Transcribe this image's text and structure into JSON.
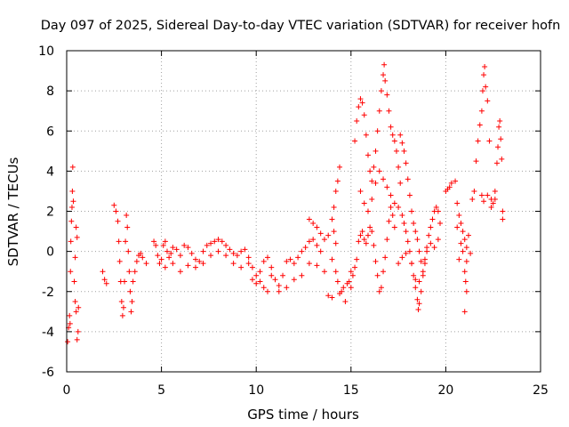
{
  "chart_data": {
    "type": "scatter",
    "title": "Day 097 of 2025, Sidereal Day-to-day VTEC variation (SDTVAR) for receiver hofn",
    "xlabel": "GPS time / hours",
    "ylabel": "SDTVAR / TECUs",
    "xlim": [
      0,
      25
    ],
    "ylim": [
      -6,
      10
    ],
    "xticks": [
      0,
      5,
      10,
      15,
      20,
      25
    ],
    "yticks": [
      -6,
      -4,
      -2,
      0,
      2,
      4,
      6,
      8,
      10
    ],
    "xtick_labels": [
      "0",
      "5",
      "10",
      "15",
      "20",
      "25"
    ],
    "ytick_labels": [
      "-6",
      "-4",
      "-2",
      "0",
      "2",
      "4",
      "6",
      "8",
      "10"
    ],
    "grid": true,
    "marker": "+",
    "marker_color": "#ff0000",
    "series": [
      {
        "name": "SDTVAR",
        "points": [
          [
            0.05,
            -4.5
          ],
          [
            0.1,
            -3.8
          ],
          [
            0.15,
            -3.2
          ],
          [
            0.18,
            -3.6
          ],
          [
            0.2,
            -1.0
          ],
          [
            0.22,
            0.5
          ],
          [
            0.25,
            1.5
          ],
          [
            0.28,
            2.2
          ],
          [
            0.3,
            3.0
          ],
          [
            0.32,
            4.2
          ],
          [
            0.35,
            2.5
          ],
          [
            0.4,
            -1.5
          ],
          [
            0.45,
            -2.5
          ],
          [
            0.5,
            -3.0
          ],
          [
            0.55,
            -4.4
          ],
          [
            0.6,
            -4.0
          ],
          [
            0.62,
            -2.8
          ],
          [
            0.5,
            1.2
          ],
          [
            0.55,
            0.7
          ],
          [
            0.45,
            -0.3
          ],
          [
            1.9,
            -1.0
          ],
          [
            2.0,
            -1.4
          ],
          [
            2.1,
            -1.6
          ],
          [
            2.5,
            2.3
          ],
          [
            2.6,
            2.0
          ],
          [
            2.7,
            1.5
          ],
          [
            2.75,
            0.5
          ],
          [
            2.8,
            -0.5
          ],
          [
            2.85,
            -1.5
          ],
          [
            2.9,
            -2.5
          ],
          [
            2.95,
            -3.2
          ],
          [
            3.0,
            -2.8
          ],
          [
            3.05,
            -1.5
          ],
          [
            3.1,
            0.5
          ],
          [
            3.15,
            1.8
          ],
          [
            3.2,
            1.2
          ],
          [
            3.25,
            0.0
          ],
          [
            3.3,
            -1.0
          ],
          [
            3.35,
            -2.0
          ],
          [
            3.4,
            -3.0
          ],
          [
            3.45,
            -2.5
          ],
          [
            3.5,
            -1.5
          ],
          [
            3.6,
            -1.0
          ],
          [
            3.7,
            -0.5
          ],
          [
            3.8,
            -0.2
          ],
          [
            3.9,
            -0.1
          ],
          [
            4.0,
            -0.3
          ],
          [
            4.2,
            -0.6
          ],
          [
            4.6,
            0.5
          ],
          [
            4.7,
            0.3
          ],
          [
            4.8,
            -0.2
          ],
          [
            4.9,
            -0.6
          ],
          [
            5.0,
            -0.4
          ],
          [
            5.1,
            0.3
          ],
          [
            5.2,
            0.5
          ],
          [
            5.3,
            0.0
          ],
          [
            5.4,
            -0.3
          ],
          [
            5.5,
            -0.1
          ],
          [
            5.6,
            0.2
          ],
          [
            5.8,
            0.1
          ],
          [
            6.0,
            -0.2
          ],
          [
            6.2,
            0.3
          ],
          [
            6.4,
            0.2
          ],
          [
            6.6,
            -0.1
          ],
          [
            6.8,
            -0.4
          ],
          [
            7.0,
            -0.5
          ],
          [
            7.2,
            0.0
          ],
          [
            7.4,
            0.3
          ],
          [
            7.6,
            0.4
          ],
          [
            7.8,
            0.5
          ],
          [
            8.0,
            0.6
          ],
          [
            8.2,
            0.5
          ],
          [
            8.4,
            0.3
          ],
          [
            8.6,
            0.1
          ],
          [
            8.8,
            -0.1
          ],
          [
            9.0,
            -0.2
          ],
          [
            9.2,
            0.0
          ],
          [
            9.4,
            0.1
          ],
          [
            9.6,
            -0.3
          ],
          [
            9.8,
            -0.8
          ],
          [
            10.0,
            -1.2
          ],
          [
            10.2,
            -1.0
          ],
          [
            10.4,
            -0.5
          ],
          [
            10.6,
            -0.3
          ],
          [
            10.8,
            -0.8
          ],
          [
            11.0,
            -1.4
          ],
          [
            11.2,
            -1.7
          ],
          [
            11.4,
            -1.2
          ],
          [
            11.6,
            -0.5
          ],
          [
            11.8,
            -0.4
          ],
          [
            12.0,
            -0.6
          ],
          [
            12.2,
            -0.3
          ],
          [
            12.4,
            0.0
          ],
          [
            12.6,
            0.2
          ],
          [
            12.8,
            0.5
          ],
          [
            13.0,
            0.6
          ],
          [
            13.2,
            0.3
          ],
          [
            13.4,
            0.0
          ],
          [
            5.2,
            -0.8
          ],
          [
            5.6,
            -0.6
          ],
          [
            6.0,
            -1.0
          ],
          [
            6.4,
            -0.7
          ],
          [
            6.8,
            -0.8
          ],
          [
            7.2,
            -0.6
          ],
          [
            7.6,
            -0.2
          ],
          [
            8.0,
            0.0
          ],
          [
            8.4,
            -0.2
          ],
          [
            8.8,
            -0.6
          ],
          [
            9.2,
            -0.8
          ],
          [
            9.6,
            -0.6
          ],
          [
            10.0,
            -1.6
          ],
          [
            10.4,
            -1.8
          ],
          [
            10.8,
            -1.2
          ],
          [
            11.2,
            -2.0
          ],
          [
            11.6,
            -1.8
          ],
          [
            12.0,
            -1.4
          ],
          [
            12.4,
            -1.2
          ],
          [
            12.8,
            -0.6
          ],
          [
            13.2,
            -0.7
          ],
          [
            13.6,
            -1.0
          ],
          [
            9.8,
            -1.4
          ],
          [
            10.2,
            -1.5
          ],
          [
            10.6,
            -2.0
          ],
          [
            12.8,
            1.6
          ],
          [
            13.0,
            1.4
          ],
          [
            13.2,
            1.2
          ],
          [
            13.4,
            0.9
          ],
          [
            13.6,
            0.6
          ],
          [
            13.8,
            0.8
          ],
          [
            14.0,
            1.6
          ],
          [
            14.1,
            2.2
          ],
          [
            14.2,
            3.0
          ],
          [
            14.3,
            3.5
          ],
          [
            14.4,
            4.2
          ],
          [
            14.1,
            1.0
          ],
          [
            14.2,
            0.4
          ],
          [
            14.0,
            -0.4
          ],
          [
            14.2,
            -1.0
          ],
          [
            14.3,
            -1.5
          ],
          [
            14.5,
            -2.0
          ],
          [
            14.6,
            -1.8
          ],
          [
            14.8,
            -1.6
          ],
          [
            13.8,
            -2.2
          ],
          [
            14.0,
            -2.3
          ],
          [
            14.4,
            -2.1
          ],
          [
            14.7,
            -2.5
          ],
          [
            14.9,
            -1.5
          ],
          [
            15.0,
            -1.0
          ],
          [
            15.0,
            -1.8
          ],
          [
            15.1,
            -1.2
          ],
          [
            15.2,
            -0.8
          ],
          [
            15.3,
            -0.4
          ],
          [
            15.4,
            0.5
          ],
          [
            15.5,
            0.8
          ],
          [
            15.6,
            1.0
          ],
          [
            15.7,
            0.6
          ],
          [
            15.8,
            0.4
          ],
          [
            15.9,
            0.8
          ],
          [
            16.0,
            1.2
          ],
          [
            16.1,
            1.0
          ],
          [
            16.2,
            0.3
          ],
          [
            16.3,
            -0.5
          ],
          [
            16.4,
            -1.2
          ],
          [
            16.5,
            -2.0
          ],
          [
            16.6,
            -1.8
          ],
          [
            16.7,
            -1.0
          ],
          [
            16.8,
            -0.3
          ],
          [
            16.9,
            0.6
          ],
          [
            17.0,
            1.5
          ],
          [
            17.1,
            2.2
          ],
          [
            17.2,
            1.8
          ],
          [
            17.3,
            1.2
          ],
          [
            15.2,
            5.5
          ],
          [
            15.3,
            6.5
          ],
          [
            15.4,
            7.2
          ],
          [
            15.5,
            7.6
          ],
          [
            15.6,
            7.4
          ],
          [
            15.7,
            6.8
          ],
          [
            15.8,
            5.8
          ],
          [
            15.9,
            4.8
          ],
          [
            16.0,
            4.0
          ],
          [
            16.1,
            3.5
          ],
          [
            16.2,
            4.2
          ],
          [
            16.3,
            5.0
          ],
          [
            16.4,
            6.0
          ],
          [
            16.5,
            7.0
          ],
          [
            16.6,
            8.0
          ],
          [
            16.7,
            8.8
          ],
          [
            16.75,
            9.3
          ],
          [
            16.8,
            8.5
          ],
          [
            16.9,
            7.8
          ],
          [
            17.0,
            7.0
          ],
          [
            17.1,
            6.2
          ],
          [
            17.2,
            5.8
          ],
          [
            17.3,
            5.5
          ],
          [
            17.4,
            5.0
          ],
          [
            17.5,
            4.2
          ],
          [
            17.6,
            3.4
          ],
          [
            15.5,
            3.0
          ],
          [
            15.7,
            2.4
          ],
          [
            15.9,
            2.0
          ],
          [
            16.1,
            2.6
          ],
          [
            16.3,
            3.4
          ],
          [
            16.5,
            4.0
          ],
          [
            16.7,
            3.6
          ],
          [
            16.9,
            3.2
          ],
          [
            17.1,
            2.8
          ],
          [
            17.3,
            2.4
          ],
          [
            17.5,
            2.2
          ],
          [
            17.7,
            1.8
          ],
          [
            17.8,
            1.4
          ],
          [
            17.9,
            1.0
          ],
          [
            18.0,
            0.5
          ],
          [
            18.1,
            0.0
          ],
          [
            18.2,
            -0.6
          ],
          [
            18.3,
            -1.2
          ],
          [
            18.4,
            -1.8
          ],
          [
            18.5,
            -2.4
          ],
          [
            18.55,
            -2.9
          ],
          [
            18.6,
            -2.6
          ],
          [
            18.7,
            -2.0
          ],
          [
            18.8,
            -1.2
          ],
          [
            18.9,
            -0.4
          ],
          [
            19.0,
            0.2
          ],
          [
            19.1,
            0.8
          ],
          [
            19.2,
            1.2
          ],
          [
            19.3,
            1.6
          ],
          [
            19.4,
            2.0
          ],
          [
            19.5,
            2.2
          ],
          [
            19.6,
            2.0
          ],
          [
            19.7,
            1.4
          ],
          [
            17.6,
            5.8
          ],
          [
            17.7,
            5.4
          ],
          [
            17.8,
            5.0
          ],
          [
            17.9,
            4.4
          ],
          [
            18.0,
            3.6
          ],
          [
            18.1,
            2.8
          ],
          [
            18.2,
            2.0
          ],
          [
            18.3,
            1.4
          ],
          [
            18.4,
            1.0
          ],
          [
            18.5,
            0.6
          ],
          [
            18.6,
            0.0
          ],
          [
            18.7,
            -0.5
          ],
          [
            18.8,
            -1.0
          ],
          [
            18.9,
            -0.6
          ],
          [
            19.0,
            0.0
          ],
          [
            19.2,
            0.4
          ],
          [
            19.4,
            0.2
          ],
          [
            19.6,
            0.6
          ],
          [
            17.5,
            -0.6
          ],
          [
            17.7,
            -0.3
          ],
          [
            17.9,
            -0.1
          ],
          [
            18.2,
            -0.6
          ],
          [
            18.4,
            -1.4
          ],
          [
            18.6,
            -1.5
          ],
          [
            20.0,
            3.0
          ],
          [
            20.1,
            3.1
          ],
          [
            20.2,
            3.2
          ],
          [
            20.3,
            3.4
          ],
          [
            20.5,
            3.5
          ],
          [
            20.6,
            2.4
          ],
          [
            20.7,
            1.8
          ],
          [
            20.8,
            1.4
          ],
          [
            20.9,
            1.0
          ],
          [
            21.0,
            0.6
          ],
          [
            21.1,
            0.2
          ],
          [
            21.2,
            0.8
          ],
          [
            21.1,
            -0.5
          ],
          [
            21.0,
            -1.0
          ],
          [
            21.05,
            -1.5
          ],
          [
            21.1,
            -2.0
          ],
          [
            21.0,
            -3.0
          ],
          [
            20.6,
            1.2
          ],
          [
            20.8,
            0.4
          ],
          [
            20.9,
            0.0
          ],
          [
            21.3,
            -0.1
          ],
          [
            20.7,
            -0.4
          ],
          [
            21.4,
            2.6
          ],
          [
            21.5,
            3.0
          ],
          [
            21.6,
            4.5
          ],
          [
            21.7,
            5.5
          ],
          [
            21.8,
            6.3
          ],
          [
            21.9,
            7.0
          ],
          [
            21.95,
            8.0
          ],
          [
            22.0,
            8.8
          ],
          [
            22.05,
            9.2
          ],
          [
            22.1,
            8.2
          ],
          [
            22.2,
            7.5
          ],
          [
            22.3,
            5.5
          ],
          [
            21.9,
            2.8
          ],
          [
            22.0,
            2.5
          ],
          [
            22.2,
            2.8
          ],
          [
            22.4,
            2.6
          ],
          [
            22.5,
            2.4
          ],
          [
            22.6,
            3.0
          ],
          [
            22.7,
            4.4
          ],
          [
            22.75,
            5.2
          ],
          [
            22.8,
            6.2
          ],
          [
            22.85,
            6.5
          ],
          [
            22.9,
            5.6
          ],
          [
            22.95,
            4.6
          ],
          [
            23.0,
            2.0
          ],
          [
            23.0,
            1.6
          ],
          [
            22.4,
            2.2
          ],
          [
            22.6,
            2.6
          ]
        ]
      }
    ]
  }
}
